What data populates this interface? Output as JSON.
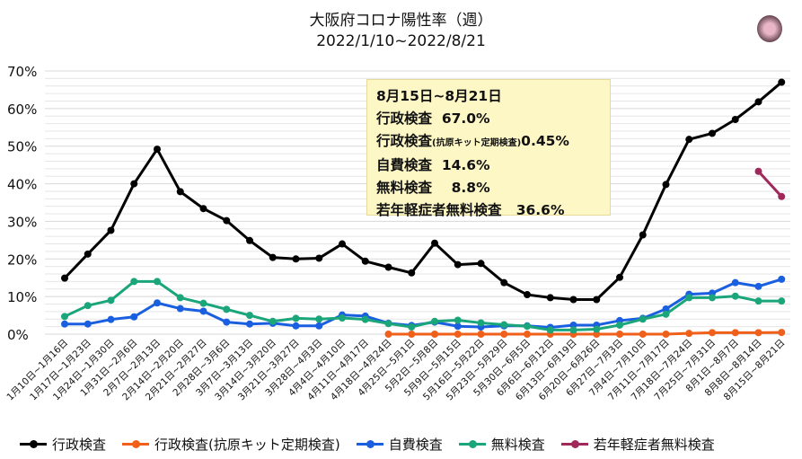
{
  "chart_data": {
    "type": "line",
    "title": "大阪府コロナ陽性率（週）",
    "subtitle": "2022/1/10~2022/8/21",
    "ylim": [
      0,
      70
    ],
    "yticks": [
      "0%",
      "10%",
      "20%",
      "30%",
      "40%",
      "50%",
      "60%",
      "70%"
    ],
    "grid": "horizontal every 2%",
    "legend": "bottom",
    "categories": [
      "1月10日~1月16日",
      "1月17日~1月23日",
      "1月24日~1月30日",
      "1月31日~2月6日",
      "2月7日~2月13日",
      "2月14日~2月20日",
      "2月21日~2月27日",
      "2月28日~3月6日",
      "3月7日~3月13日",
      "3月14日~3月20日",
      "3月21日~3月27日",
      "3月28日~4月3日",
      "4月4日~4月10日",
      "4月11日~4月17日",
      "4月18日~4月24日",
      "4月25日~5月1日",
      "5月2日~5月8日",
      "5月9日~5月15日",
      "5月16日~5月22日",
      "5月23日~5月29日",
      "5月30日~6月5日",
      "6月6日~6月12日",
      "6月13日~6月19日",
      "6月20日~6月26日",
      "6月27日~7月3日",
      "7月4日~7月10日",
      "7月11日~7月17日",
      "7月18日~7月24日",
      "7月25日~7月31日",
      "8月1日~8月7日",
      "8月8日~8月14日",
      "8月15日~8月21日"
    ],
    "series": [
      {
        "name": "行政検査",
        "color": "#000000",
        "values": [
          14.9,
          21.3,
          27.6,
          40.0,
          49.2,
          37.9,
          33.4,
          30.2,
          24.9,
          20.4,
          20.0,
          20.2,
          24.0,
          19.4,
          17.8,
          16.3,
          24.2,
          18.5,
          18.8,
          13.7,
          10.5,
          9.7,
          9.2,
          9.2,
          15.1,
          26.4,
          39.8,
          51.8,
          53.4,
          57.1,
          61.8,
          67.0
        ]
      },
      {
        "name": "行政検査(抗原キット定期検査)",
        "color": "#f0601a",
        "values": [
          null,
          null,
          null,
          null,
          null,
          null,
          null,
          null,
          null,
          null,
          null,
          null,
          null,
          null,
          0,
          0,
          0,
          0,
          0,
          0,
          0,
          0,
          0,
          0,
          0,
          0,
          0,
          0.2,
          0.4,
          0.4,
          0.4,
          0.45
        ]
      },
      {
        "name": "自費検査",
        "color": "#1a5fe0",
        "values": [
          2.7,
          2.7,
          3.9,
          4.6,
          8.3,
          6.8,
          6.1,
          3.2,
          2.7,
          2.9,
          2.2,
          2.2,
          5.1,
          4.8,
          2.9,
          2.3,
          3.2,
          2.1,
          1.9,
          2.2,
          2.2,
          1.8,
          2.4,
          2.4,
          3.6,
          4.2,
          6.7,
          10.6,
          10.9,
          13.7,
          12.7,
          14.6
        ]
      },
      {
        "name": "無料検査",
        "color": "#1aa57a",
        "values": [
          4.7,
          7.6,
          9.0,
          14.0,
          14.0,
          9.7,
          8.2,
          6.6,
          5.0,
          3.4,
          4.2,
          4.0,
          4.3,
          3.9,
          2.8,
          1.9,
          3.4,
          3.7,
          3.0,
          2.5,
          2.1,
          1.1,
          1.1,
          1.3,
          2.4,
          4.0,
          5.3,
          9.7,
          9.7,
          10.1,
          8.8,
          8.8
        ]
      },
      {
        "name": "若年軽症者無料検査",
        "color": "#a0285a",
        "values": [
          null,
          null,
          null,
          null,
          null,
          null,
          null,
          null,
          null,
          null,
          null,
          null,
          null,
          null,
          null,
          null,
          null,
          null,
          null,
          null,
          null,
          null,
          null,
          null,
          null,
          null,
          null,
          null,
          null,
          null,
          43.3,
          36.6
        ]
      }
    ],
    "annotation": {
      "heading": "8月15日~8月21日",
      "lines": [
        {
          "label": "行政検査",
          "value": "67.0%"
        },
        {
          "label": "行政検査",
          "small": "(抗原キット定期検査)",
          "value": "0.45%"
        },
        {
          "label": "自費検査",
          "value": "14.6%"
        },
        {
          "label": "無料検査",
          "value": "8.8%"
        },
        {
          "label": "若年軽症者無料検査",
          "value": "36.6%"
        }
      ]
    }
  }
}
